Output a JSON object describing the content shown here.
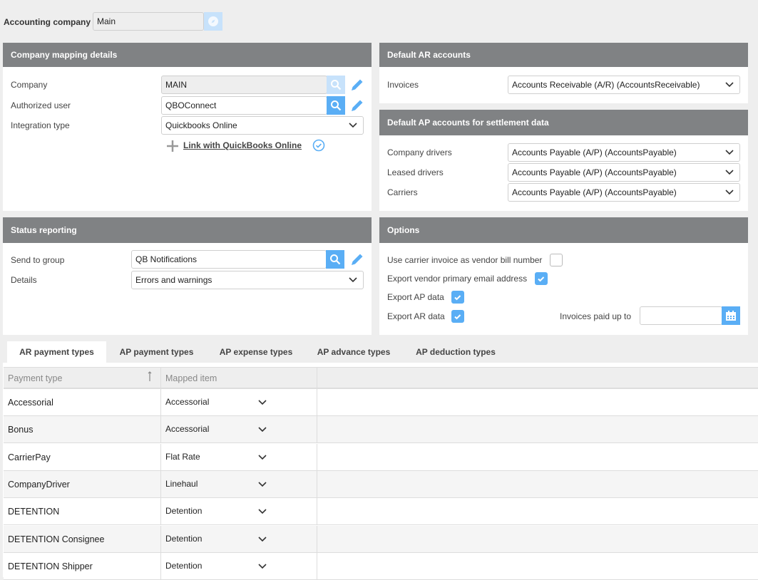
{
  "accounting_company": {
    "label": "Accounting company",
    "value": "Main"
  },
  "company_mapping": {
    "title": "Company mapping details",
    "company": {
      "label": "Company",
      "value": "MAIN"
    },
    "authorized_user": {
      "label": "Authorized user",
      "value": "QBOConnect"
    },
    "integration_type": {
      "label": "Integration type",
      "value": "Quickbooks Online"
    },
    "link_label": "Link with QuickBooks Online"
  },
  "ar_accounts": {
    "title": "Default AR accounts",
    "invoices": {
      "label": "Invoices",
      "value": "Accounts Receivable (A/R) (AccountsReceivable)"
    }
  },
  "ap_accounts": {
    "title": "Default AP accounts for settlement data",
    "rows": [
      {
        "label": "Company drivers",
        "value": "Accounts Payable (A/P) (AccountsPayable)"
      },
      {
        "label": "Leased drivers",
        "value": "Accounts Payable (A/P) (AccountsPayable)"
      },
      {
        "label": "Carriers",
        "value": "Accounts Payable (A/P) (AccountsPayable)"
      }
    ]
  },
  "status_reporting": {
    "title": "Status reporting",
    "send_to_group": {
      "label": "Send to group",
      "value": "QB Notifications"
    },
    "details": {
      "label": "Details",
      "value": "Errors and warnings"
    }
  },
  "options": {
    "title": "Options",
    "use_carrier_invoice": {
      "label": "Use carrier invoice as vendor bill number",
      "checked": false
    },
    "export_vendor_email": {
      "label": "Export vendor primary email address",
      "checked": true
    },
    "export_ap": {
      "label": "Export AP data",
      "checked": true
    },
    "export_ar": {
      "label": "Export AR data",
      "checked": true
    },
    "invoices_paid_up_to": {
      "label": "Invoices paid up to",
      "value": ""
    }
  },
  "tabs": [
    "AR payment types",
    "AP payment types",
    "AP expense types",
    "AP advance types",
    "AP deduction types"
  ],
  "active_tab": "AR payment types",
  "table": {
    "columns": [
      "Payment type",
      "Mapped item"
    ],
    "sort": "ascending",
    "rows": [
      [
        "Accessorial",
        "Accessorial"
      ],
      [
        "Bonus",
        "Accessorial"
      ],
      [
        "CarrierPay",
        "Flat Rate"
      ],
      [
        "CompanyDriver",
        "Linehaul"
      ],
      [
        "DETENTION",
        "Detention"
      ],
      [
        "DETENTION Consignee",
        "Detention"
      ],
      [
        "DETENTION Shipper",
        "Detention"
      ]
    ]
  },
  "colors": {
    "accent": "#5aaef5",
    "panel_header": "#808284",
    "background": "#eeeeee"
  }
}
